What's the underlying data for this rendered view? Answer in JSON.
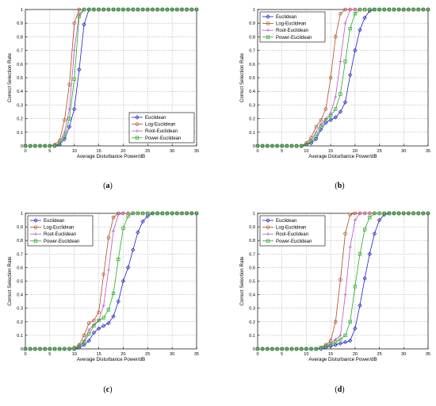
{
  "chart_data": [
    {
      "type": "line",
      "panel_label": "(a)",
      "xlabel": "Average Disturbance Power/dB",
      "ylabel": "Correct Selection Rate",
      "xlim": [
        0,
        35
      ],
      "ylim": [
        0,
        1
      ],
      "xticks": [
        0,
        5,
        10,
        15,
        20,
        25,
        30,
        35
      ],
      "yticks": [
        0,
        0.1,
        0.2,
        0.3,
        0.4,
        0.5,
        0.6,
        0.7,
        0.8,
        0.9,
        1
      ],
      "grid": true,
      "legend_position": "bottom-right",
      "x": [
        0,
        1,
        2,
        3,
        4,
        5,
        6,
        7,
        8,
        9,
        10,
        11,
        12,
        13,
        14,
        15,
        16,
        17,
        18,
        19,
        20,
        21,
        22,
        23,
        24,
        25,
        26,
        27,
        28,
        29,
        30,
        31,
        32,
        33,
        34,
        35
      ],
      "series": [
        {
          "name": "Euclidean",
          "color": "#1f1fcc",
          "marker": "diamond",
          "values": [
            0,
            0,
            0,
            0,
            0,
            0,
            0,
            0.01,
            0.05,
            0.14,
            0.27,
            0.56,
            0.89,
            1,
            1,
            1,
            1,
            1,
            1,
            1,
            1,
            1,
            1,
            1,
            1,
            1,
            1,
            1,
            1,
            1,
            1,
            1,
            1,
            1,
            1,
            1
          ]
        },
        {
          "name": "Log-Euclidean",
          "color": "#b04a1c",
          "marker": "circle",
          "values": [
            0,
            0,
            0,
            0,
            0,
            0,
            0.01,
            0.04,
            0.19,
            0.45,
            0.9,
            1,
            1,
            1,
            1,
            1,
            1,
            1,
            1,
            1,
            1,
            1,
            1,
            1,
            1,
            1,
            1,
            1,
            1,
            1,
            1,
            1,
            1,
            1,
            1,
            1
          ]
        },
        {
          "name": "Root-Euclidean",
          "color": "#c050c8",
          "marker": "plus",
          "values": [
            0,
            0,
            0,
            0,
            0,
            0,
            0,
            0.02,
            0.1,
            0.27,
            0.7,
            0.97,
            1,
            1,
            1,
            1,
            1,
            1,
            1,
            1,
            1,
            1,
            1,
            1,
            1,
            1,
            1,
            1,
            1,
            1,
            1,
            1,
            1,
            1,
            1,
            1
          ]
        },
        {
          "name": "Power-Euclidean",
          "color": "#22aa22",
          "marker": "square",
          "values": [
            0,
            0,
            0,
            0,
            0,
            0,
            0,
            0.02,
            0.07,
            0.2,
            0.49,
            0.95,
            1,
            1,
            1,
            1,
            1,
            1,
            1,
            1,
            1,
            1,
            1,
            1,
            1,
            1,
            1,
            1,
            1,
            1,
            1,
            1,
            1,
            1,
            1,
            1
          ]
        }
      ]
    },
    {
      "type": "line",
      "panel_label": "(b)",
      "xlabel": "Average Disturbance Power/dB",
      "ylabel": "Correct Selection Rate",
      "xlim": [
        0,
        35
      ],
      "ylim": [
        0,
        1
      ],
      "xticks": [
        0,
        5,
        10,
        15,
        20,
        25,
        30,
        35
      ],
      "yticks": [
        0,
        0.1,
        0.2,
        0.3,
        0.4,
        0.5,
        0.6,
        0.7,
        0.8,
        0.9,
        1
      ],
      "grid": true,
      "legend_position": "top-left",
      "x": [
        0,
        1,
        2,
        3,
        4,
        5,
        6,
        7,
        8,
        9,
        10,
        11,
        12,
        13,
        14,
        15,
        16,
        17,
        18,
        19,
        20,
        21,
        22,
        23,
        24,
        25,
        26,
        27,
        28,
        29,
        30,
        31,
        32,
        33,
        34,
        35
      ],
      "series": [
        {
          "name": "Euclidean",
          "color": "#1f1fcc",
          "marker": "diamond",
          "values": [
            0,
            0,
            0,
            0,
            0,
            0,
            0,
            0,
            0,
            0,
            0.01,
            0.02,
            0.05,
            0.12,
            0.17,
            0.19,
            0.21,
            0.25,
            0.32,
            0.52,
            0.7,
            0.85,
            0.94,
            0.99,
            1,
            1,
            1,
            1,
            1,
            1,
            1,
            1,
            1,
            1,
            1,
            1
          ]
        },
        {
          "name": "Log-Euclidean",
          "color": "#b04a1c",
          "marker": "circle",
          "values": [
            0,
            0,
            0,
            0,
            0,
            0,
            0,
            0,
            0,
            0,
            0.02,
            0.06,
            0.14,
            0.19,
            0.27,
            0.5,
            0.8,
            0.97,
            1,
            1,
            1,
            1,
            1,
            1,
            1,
            1,
            1,
            1,
            1,
            1,
            1,
            1,
            1,
            1,
            1,
            1
          ]
        },
        {
          "name": "Root-Euclidean",
          "color": "#c050c8",
          "marker": "plus",
          "values": [
            0,
            0,
            0,
            0,
            0,
            0,
            0,
            0,
            0,
            0,
            0.01,
            0.04,
            0.1,
            0.16,
            0.2,
            0.24,
            0.36,
            0.62,
            0.9,
            1,
            1,
            1,
            1,
            1,
            1,
            1,
            1,
            1,
            1,
            1,
            1,
            1,
            1,
            1,
            1,
            1
          ]
        },
        {
          "name": "Power-Euclidean",
          "color": "#22aa22",
          "marker": "square",
          "values": [
            0,
            0,
            0,
            0,
            0,
            0,
            0,
            0,
            0,
            0,
            0.01,
            0.03,
            0.07,
            0.14,
            0.19,
            0.22,
            0.27,
            0.38,
            0.62,
            0.86,
            0.97,
            1,
            1,
            1,
            1,
            1,
            1,
            1,
            1,
            1,
            1,
            1,
            1,
            1,
            1,
            1
          ]
        }
      ]
    },
    {
      "type": "line",
      "panel_label": "(c)",
      "xlabel": "Average Disturbance Power/dB",
      "ylabel": "Correct Selection Rate",
      "xlim": [
        0,
        35
      ],
      "ylim": [
        0,
        1
      ],
      "xticks": [
        0,
        5,
        10,
        15,
        20,
        25,
        30,
        35
      ],
      "yticks": [
        0,
        0.1,
        0.2,
        0.3,
        0.4,
        0.5,
        0.6,
        0.7,
        0.8,
        0.9,
        1
      ],
      "grid": true,
      "legend_position": "top-left",
      "x": [
        0,
        1,
        2,
        3,
        4,
        5,
        6,
        7,
        8,
        9,
        10,
        11,
        12,
        13,
        14,
        15,
        16,
        17,
        18,
        19,
        20,
        21,
        22,
        23,
        24,
        25,
        26,
        27,
        28,
        29,
        30,
        31,
        32,
        33,
        34,
        35
      ],
      "series": [
        {
          "name": "Euclidean",
          "color": "#1f1fcc",
          "marker": "diamond",
          "values": [
            0,
            0,
            0,
            0,
            0,
            0,
            0,
            0,
            0,
            0,
            0,
            0.01,
            0.03,
            0.06,
            0.12,
            0.15,
            0.17,
            0.19,
            0.24,
            0.35,
            0.5,
            0.6,
            0.73,
            0.86,
            0.94,
            0.98,
            1,
            1,
            1,
            1,
            1,
            1,
            1,
            1,
            1,
            1
          ]
        },
        {
          "name": "Log-Euclidean",
          "color": "#b04a1c",
          "marker": "circle",
          "values": [
            0,
            0,
            0,
            0,
            0,
            0,
            0,
            0,
            0,
            0,
            0.01,
            0.03,
            0.1,
            0.19,
            0.21,
            0.27,
            0.55,
            0.82,
            0.97,
            1,
            1,
            1,
            1,
            1,
            1,
            1,
            1,
            1,
            1,
            1,
            1,
            1,
            1,
            1,
            1,
            1
          ]
        },
        {
          "name": "Root-Euclidean",
          "color": "#c050c8",
          "marker": "plus",
          "values": [
            0,
            0,
            0,
            0,
            0,
            0,
            0,
            0,
            0,
            0,
            0,
            0.02,
            0.06,
            0.14,
            0.18,
            0.21,
            0.32,
            0.58,
            0.87,
            0.99,
            1,
            1,
            1,
            1,
            1,
            1,
            1,
            1,
            1,
            1,
            1,
            1,
            1,
            1,
            1,
            1
          ]
        },
        {
          "name": "Power-Euclidean",
          "color": "#22aa22",
          "marker": "square",
          "values": [
            0,
            0,
            0,
            0,
            0,
            0,
            0,
            0,
            0,
            0,
            0,
            0.02,
            0.05,
            0.11,
            0.17,
            0.21,
            0.23,
            0.29,
            0.41,
            0.66,
            0.89,
            0.98,
            1,
            1,
            1,
            1,
            1,
            1,
            1,
            1,
            1,
            1,
            1,
            1,
            1,
            1
          ]
        }
      ]
    },
    {
      "type": "line",
      "panel_label": "(d)",
      "xlabel": "Average Disturbance Power/dB",
      "ylabel": "Correct Selection Rate",
      "xlim": [
        0,
        35
      ],
      "ylim": [
        0,
        1
      ],
      "xticks": [
        0,
        5,
        10,
        15,
        20,
        25,
        30,
        35
      ],
      "yticks": [
        0,
        0.1,
        0.2,
        0.3,
        0.4,
        0.5,
        0.6,
        0.7,
        0.8,
        0.9,
        1
      ],
      "grid": true,
      "legend_position": "top-left",
      "x": [
        0,
        1,
        2,
        3,
        4,
        5,
        6,
        7,
        8,
        9,
        10,
        11,
        12,
        13,
        14,
        15,
        16,
        17,
        18,
        19,
        20,
        21,
        22,
        23,
        24,
        25,
        26,
        27,
        28,
        29,
        30,
        31,
        32,
        33,
        34,
        35
      ],
      "series": [
        {
          "name": "Euclidean",
          "color": "#1f1fcc",
          "marker": "diamond",
          "values": [
            0,
            0,
            0,
            0,
            0,
            0,
            0,
            0,
            0,
            0,
            0,
            0,
            0,
            0,
            0.01,
            0.02,
            0.03,
            0.04,
            0.05,
            0.06,
            0.15,
            0.32,
            0.52,
            0.7,
            0.85,
            0.95,
            0.99,
            1,
            1,
            1,
            1,
            1,
            1,
            1,
            1,
            1
          ]
        },
        {
          "name": "Log-Euclidean",
          "color": "#b04a1c",
          "marker": "circle",
          "values": [
            0,
            0,
            0,
            0,
            0,
            0,
            0,
            0,
            0,
            0,
            0,
            0,
            0,
            0.01,
            0.03,
            0.06,
            0.2,
            0.51,
            0.85,
            0.99,
            1,
            1,
            1,
            1,
            1,
            1,
            1,
            1,
            1,
            1,
            1,
            1,
            1,
            1,
            1,
            1
          ]
        },
        {
          "name": "Root-Euclidean",
          "color": "#c050c8",
          "marker": "plus",
          "values": [
            0,
            0,
            0,
            0,
            0,
            0,
            0,
            0,
            0,
            0,
            0,
            0,
            0,
            0.01,
            0.02,
            0.04,
            0.07,
            0.1,
            0.4,
            0.75,
            0.95,
            1,
            1,
            1,
            1,
            1,
            1,
            1,
            1,
            1,
            1,
            1,
            1,
            1,
            1,
            1
          ]
        },
        {
          "name": "Power-Euclidean",
          "color": "#22aa22",
          "marker": "square",
          "values": [
            0,
            0,
            0,
            0,
            0,
            0,
            0,
            0,
            0,
            0,
            0,
            0,
            0,
            0.01,
            0.02,
            0.03,
            0.05,
            0.07,
            0.1,
            0.2,
            0.46,
            0.7,
            0.88,
            0.97,
            1,
            1,
            1,
            1,
            1,
            1,
            1,
            1,
            1,
            1,
            1,
            1
          ]
        }
      ]
    }
  ]
}
